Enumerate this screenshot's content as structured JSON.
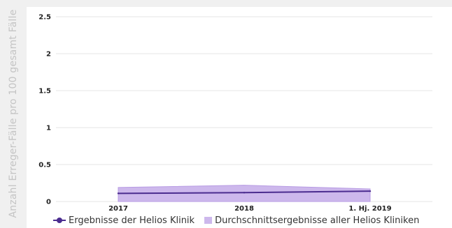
{
  "chart_data": {
    "type": "line",
    "ylabel": "Anzahl Erreger-Fälle pro 100 gesamt Fälle",
    "categories": [
      "2017",
      "2018",
      "1. Hj. 2019"
    ],
    "ylim": [
      0,
      2.5
    ],
    "yticks": [
      "2.5",
      "2",
      "1.5",
      "1",
      "0.5",
      "0"
    ],
    "ytick_values": [
      2.5,
      2,
      1.5,
      1,
      0.5,
      0
    ],
    "grid": true,
    "legend_position": "bottom",
    "series": [
      {
        "name": "Ergebnisse der Helios Klinik",
        "kind": "line",
        "values": [
          0.11,
          0.12,
          0.14
        ],
        "color": "#4b2c8f"
      },
      {
        "name": "Durchschnittsergebnisse aller Helios Kliniken",
        "kind": "area",
        "values": [
          0.19,
          0.22,
          0.17
        ],
        "color": "#cdb8ec"
      }
    ]
  }
}
